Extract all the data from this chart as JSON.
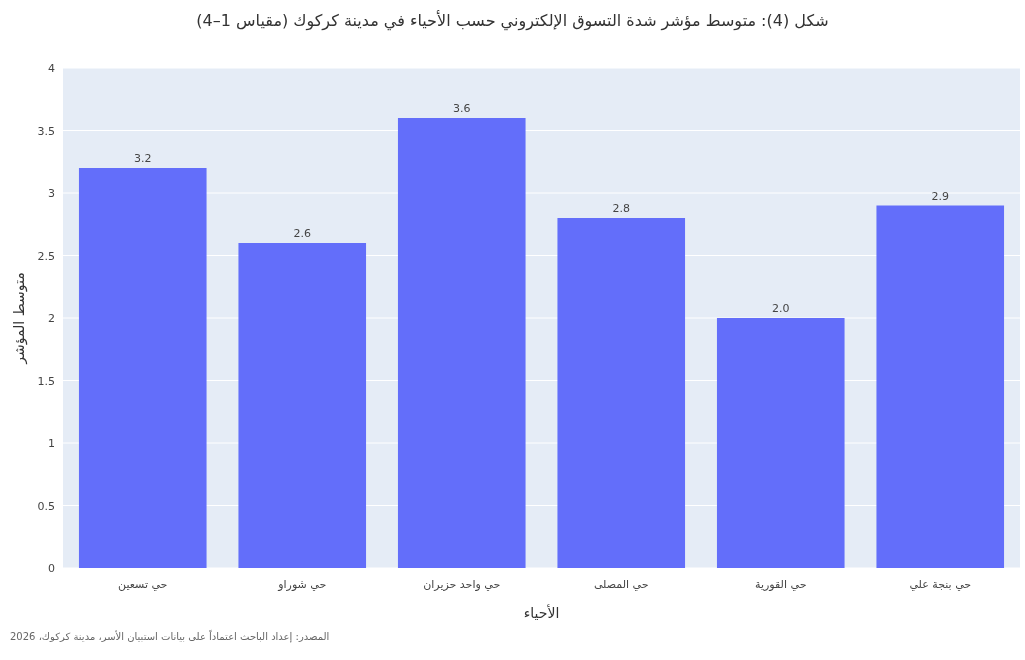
{
  "chart_data": {
    "type": "bar",
    "title": "شكل (4): متوسط مؤشر شدة التسوق الإلكتروني حسب الأحياء في مدينة كركوك (مقياس 1–4)",
    "xlabel": "الأحياء",
    "ylabel": "متوسط المؤشر",
    "categories": [
      "حي تسعين",
      "حي شوراو",
      "حي واحد حزيران",
      "حي المصلى",
      "حي القورية",
      "حي بنجة علي"
    ],
    "values": [
      3.2,
      2.6,
      3.6,
      2.8,
      2.0,
      2.9
    ],
    "value_labels": [
      "3.2",
      "2.6",
      "3.6",
      "2.8",
      "2.0",
      "2.9"
    ],
    "color": "#636efa",
    "ylim": [
      0,
      4
    ],
    "yticks": [
      0,
      0.5,
      1,
      1.5,
      2,
      2.5,
      3,
      3.5,
      4
    ],
    "grid": "y",
    "annotations": [
      "المصدر: إعداد الباحث اعتماداً على بيانات استبيان الأسر، مدينة كركوك، 2026"
    ]
  }
}
